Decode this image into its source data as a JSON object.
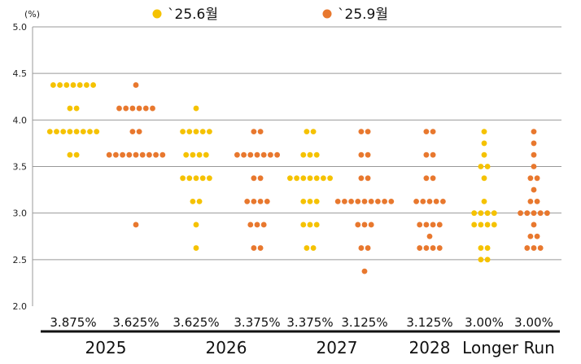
{
  "chart_data": {
    "type": "scatter",
    "unit_label": "(%)",
    "ylim": [
      2.0,
      5.0
    ],
    "y_ticks": [
      "5.0",
      "4.5",
      "4.0",
      "3.5",
      "3.0",
      "2.5",
      "2.0"
    ],
    "grid": true,
    "legend_position": "top-center",
    "series": [
      {
        "name": "`25.6월",
        "color": "#F5C200"
      },
      {
        "name": "`25.9월",
        "color": "#E8782E"
      }
    ],
    "groups": [
      {
        "label": "2025",
        "columns": [
          {
            "series": 0,
            "median_label": "3.875%",
            "dots": [
              {
                "y": 4.375,
                "n": 7
              },
              {
                "y": 4.125,
                "n": 2
              },
              {
                "y": 3.875,
                "n": 8
              },
              {
                "y": 3.625,
                "n": 2
              }
            ]
          },
          {
            "series": 1,
            "median_label": "3.625%",
            "dots": [
              {
                "y": 4.375,
                "n": 1
              },
              {
                "y": 4.125,
                "n": 6
              },
              {
                "y": 3.875,
                "n": 2
              },
              {
                "y": 3.625,
                "n": 9
              },
              {
                "y": 2.875,
                "n": 1
              }
            ]
          }
        ]
      },
      {
        "label": "2026",
        "columns": [
          {
            "series": 0,
            "median_label": "3.625%",
            "dots": [
              {
                "y": 4.125,
                "n": 1
              },
              {
                "y": 3.875,
                "n": 5
              },
              {
                "y": 3.625,
                "n": 4
              },
              {
                "y": 3.375,
                "n": 5
              },
              {
                "y": 3.125,
                "n": 2
              },
              {
                "y": 2.875,
                "n": 1
              },
              {
                "y": 2.625,
                "n": 1
              }
            ]
          },
          {
            "series": 1,
            "median_label": "3.375%",
            "dots": [
              {
                "y": 3.875,
                "n": 2
              },
              {
                "y": 3.625,
                "n": 7
              },
              {
                "y": 3.375,
                "n": 2
              },
              {
                "y": 3.125,
                "n": 4
              },
              {
                "y": 2.875,
                "n": 3
              },
              {
                "y": 2.625,
                "n": 2
              }
            ]
          }
        ]
      },
      {
        "label": "2027",
        "columns": [
          {
            "series": 0,
            "median_label": "3.375%",
            "dots": [
              {
                "y": 3.875,
                "n": 2
              },
              {
                "y": 3.625,
                "n": 3
              },
              {
                "y": 3.375,
                "n": 7
              },
              {
                "y": 3.125,
                "n": 3
              },
              {
                "y": 2.875,
                "n": 3
              },
              {
                "y": 2.625,
                "n": 2
              }
            ]
          },
          {
            "series": 1,
            "median_label": "3.125%",
            "dots": [
              {
                "y": 3.875,
                "n": 2
              },
              {
                "y": 3.625,
                "n": 2
              },
              {
                "y": 3.375,
                "n": 2
              },
              {
                "y": 3.125,
                "n": 9
              },
              {
                "y": 2.875,
                "n": 3
              },
              {
                "y": 2.625,
                "n": 2
              },
              {
                "y": 2.375,
                "n": 1
              }
            ]
          }
        ]
      },
      {
        "label": "2028",
        "columns": [
          {
            "series": 1,
            "median_label": "3.125%",
            "dots": [
              {
                "y": 3.875,
                "n": 2
              },
              {
                "y": 3.625,
                "n": 2
              },
              {
                "y": 3.375,
                "n": 2
              },
              {
                "y": 3.125,
                "n": 5
              },
              {
                "y": 2.875,
                "n": 4
              },
              {
                "y": 2.75,
                "n": 1
              },
              {
                "y": 2.625,
                "n": 4
              }
            ]
          }
        ]
      },
      {
        "label": "Longer Run",
        "columns": [
          {
            "series": 0,
            "median_label": "3.00%",
            "dots": [
              {
                "y": 3.875,
                "n": 1
              },
              {
                "y": 3.75,
                "n": 1
              },
              {
                "y": 3.625,
                "n": 1
              },
              {
                "y": 3.5,
                "n": 2
              },
              {
                "y": 3.375,
                "n": 1
              },
              {
                "y": 3.125,
                "n": 1
              },
              {
                "y": 3.0,
                "n": 4
              },
              {
                "y": 2.875,
                "n": 4
              },
              {
                "y": 2.625,
                "n": 2
              },
              {
                "y": 2.5,
                "n": 2
              }
            ]
          },
          {
            "series": 1,
            "median_label": "3.00%",
            "dots": [
              {
                "y": 3.875,
                "n": 1
              },
              {
                "y": 3.75,
                "n": 1
              },
              {
                "y": 3.625,
                "n": 1
              },
              {
                "y": 3.5,
                "n": 1
              },
              {
                "y": 3.375,
                "n": 2
              },
              {
                "y": 3.25,
                "n": 1
              },
              {
                "y": 3.125,
                "n": 2
              },
              {
                "y": 3.0,
                "n": 5
              },
              {
                "y": 2.875,
                "n": 1
              },
              {
                "y": 2.75,
                "n": 2
              },
              {
                "y": 2.625,
                "n": 3
              }
            ]
          }
        ]
      }
    ]
  }
}
